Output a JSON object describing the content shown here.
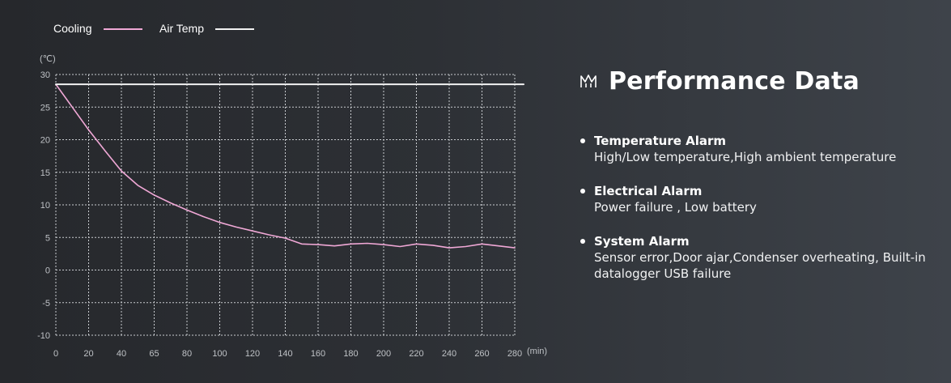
{
  "chart_data": {
    "type": "line",
    "x_unit": "(min)",
    "y_unit": "(℃)",
    "x_ticks": [
      0,
      20,
      40,
      65,
      80,
      100,
      120,
      140,
      160,
      180,
      200,
      220,
      240,
      260,
      280
    ],
    "y_ticks": [
      30,
      25,
      20,
      15,
      10,
      5,
      0,
      -5,
      -10
    ],
    "xlim": [
      0,
      280
    ],
    "ylim": [
      -10,
      30
    ],
    "grid": true,
    "legend_position": "top-left",
    "series": [
      {
        "name": "Cooling",
        "color": "#f0a8d6",
        "x": [
          0,
          10,
          20,
          30,
          40,
          50,
          60,
          70,
          80,
          90,
          100,
          110,
          120,
          130,
          140,
          150,
          160,
          170,
          180,
          190,
          200,
          210,
          220,
          230,
          240,
          250,
          260,
          270,
          280
        ],
        "values": [
          28.5,
          25.0,
          21.5,
          18.3,
          15.2,
          13.0,
          11.5,
          10.3,
          9.2,
          8.2,
          7.3,
          6.6,
          6.0,
          5.4,
          4.9,
          4.0,
          3.9,
          3.7,
          4.0,
          4.1,
          3.9,
          3.6,
          4.0,
          3.8,
          3.4,
          3.6,
          4.0,
          3.7,
          3.4
        ]
      },
      {
        "name": "Air Temp",
        "color": "#f2f2f2",
        "x": [
          0,
          280
        ],
        "values": [
          28.5,
          28.5
        ]
      }
    ]
  },
  "panel": {
    "icon": "mountain-icon",
    "title": "Performance Data",
    "items": [
      {
        "heading": "Temperature Alarm",
        "description": "High/Low temperature,High ambient temperature"
      },
      {
        "heading": "Electrical Alarm",
        "description": "Power failure , Low battery"
      },
      {
        "heading": "System Alarm",
        "description": "Sensor error,Door ajar,Condenser overheating, Built-in datalogger USB failure"
      }
    ]
  }
}
